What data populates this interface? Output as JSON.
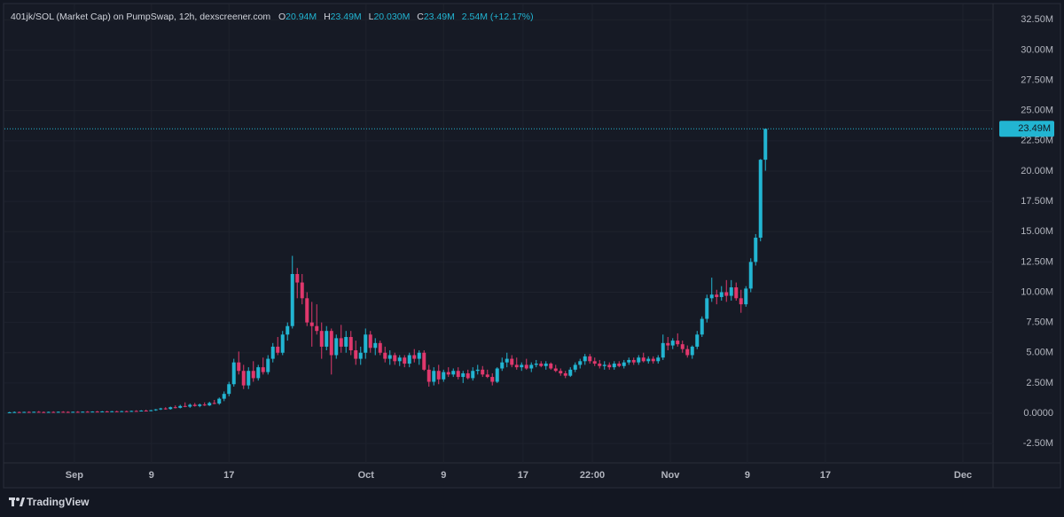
{
  "header": {
    "symbol": "401jk/SOL (Market Cap) on PumpSwap, 12h, dexscreener.com",
    "ohlc": [
      {
        "key": "O",
        "value": "20.94M"
      },
      {
        "key": "H",
        "value": "23.49M"
      },
      {
        "key": "L",
        "value": "20.030M"
      },
      {
        "key": "C",
        "value": "23.49M"
      }
    ],
    "change": "2.54M (+12.17%)"
  },
  "chart_data": {
    "type": "candlestick",
    "up_color": "#22b5d2",
    "down_color": "#e0386d",
    "grid": true,
    "ylim": [
      -4.1,
      33.4
    ],
    "yticks": [
      {
        "value": -2.5,
        "label": "-2.50M"
      },
      {
        "value": 0,
        "label": "0.0000"
      },
      {
        "value": 2.5,
        "label": "2.50M"
      },
      {
        "value": 5,
        "label": "5.00M"
      },
      {
        "value": 7.5,
        "label": "7.50M"
      },
      {
        "value": 10,
        "label": "10.00M"
      },
      {
        "value": 12.5,
        "label": "12.50M"
      },
      {
        "value": 15,
        "label": "15.00M"
      },
      {
        "value": 17.5,
        "label": "17.50M"
      },
      {
        "value": 20,
        "label": "20.00M"
      },
      {
        "value": 22.5,
        "label": "22.50M"
      },
      {
        "value": 25,
        "label": "25.00M"
      },
      {
        "value": 27.5,
        "label": "27.50M"
      },
      {
        "value": 30,
        "label": "30.00M"
      },
      {
        "value": 32.5,
        "label": "32.50M"
      }
    ],
    "xlim": [
      0,
      202
    ],
    "xticks": [
      {
        "value": 13.8,
        "label": "Sep"
      },
      {
        "value": 29.6,
        "label": "9"
      },
      {
        "value": 45.5,
        "label": "17"
      },
      {
        "value": 73.6,
        "label": "Oct"
      },
      {
        "value": 89.5,
        "label": "9"
      },
      {
        "value": 105.8,
        "label": "17"
      },
      {
        "value": 120,
        "label": "22:00"
      },
      {
        "value": 136,
        "label": "Nov"
      },
      {
        "value": 151.8,
        "label": "9"
      },
      {
        "value": 167.8,
        "label": "17"
      },
      {
        "value": 196,
        "label": "Dec"
      }
    ],
    "last_price": {
      "value": 23.49,
      "label": "23.49M"
    },
    "candles": [
      [
        0.05,
        0.12,
        0.03,
        0.08
      ],
      [
        0.08,
        0.15,
        0.05,
        0.1
      ],
      [
        0.1,
        0.14,
        0.06,
        0.09
      ],
      [
        0.09,
        0.13,
        0.05,
        0.11
      ],
      [
        0.11,
        0.16,
        0.07,
        0.1
      ],
      [
        0.1,
        0.14,
        0.07,
        0.12
      ],
      [
        0.12,
        0.18,
        0.08,
        0.1
      ],
      [
        0.1,
        0.15,
        0.07,
        0.09
      ],
      [
        0.09,
        0.14,
        0.06,
        0.11
      ],
      [
        0.11,
        0.16,
        0.08,
        0.1
      ],
      [
        0.1,
        0.15,
        0.07,
        0.12
      ],
      [
        0.12,
        0.17,
        0.09,
        0.11
      ],
      [
        0.11,
        0.16,
        0.08,
        0.1
      ],
      [
        0.1,
        0.14,
        0.07,
        0.12
      ],
      [
        0.12,
        0.17,
        0.09,
        0.11
      ],
      [
        0.11,
        0.15,
        0.08,
        0.13
      ],
      [
        0.13,
        0.18,
        0.1,
        0.12
      ],
      [
        0.12,
        0.16,
        0.09,
        0.14
      ],
      [
        0.14,
        0.19,
        0.11,
        0.13
      ],
      [
        0.13,
        0.18,
        0.1,
        0.15
      ],
      [
        0.15,
        0.2,
        0.12,
        0.14
      ],
      [
        0.14,
        0.19,
        0.11,
        0.16
      ],
      [
        0.16,
        0.21,
        0.13,
        0.15
      ],
      [
        0.15,
        0.2,
        0.12,
        0.17
      ],
      [
        0.17,
        0.22,
        0.14,
        0.16
      ],
      [
        0.16,
        0.22,
        0.13,
        0.19
      ],
      [
        0.19,
        0.25,
        0.15,
        0.18
      ],
      [
        0.18,
        0.26,
        0.15,
        0.22
      ],
      [
        0.22,
        0.3,
        0.18,
        0.2
      ],
      [
        0.2,
        0.28,
        0.17,
        0.25
      ],
      [
        0.25,
        0.35,
        0.2,
        0.32
      ],
      [
        0.32,
        0.45,
        0.27,
        0.4
      ],
      [
        0.4,
        0.5,
        0.3,
        0.35
      ],
      [
        0.35,
        0.55,
        0.3,
        0.5
      ],
      [
        0.5,
        0.65,
        0.4,
        0.45
      ],
      [
        0.45,
        0.7,
        0.4,
        0.6
      ],
      [
        0.6,
        0.9,
        0.5,
        0.55
      ],
      [
        0.55,
        0.8,
        0.45,
        0.7
      ],
      [
        0.7,
        0.85,
        0.55,
        0.6
      ],
      [
        0.6,
        0.8,
        0.5,
        0.72
      ],
      [
        0.72,
        0.9,
        0.6,
        0.65
      ],
      [
        0.65,
        0.95,
        0.6,
        0.85
      ],
      [
        0.85,
        1.1,
        0.75,
        0.8
      ],
      [
        0.8,
        1.3,
        0.7,
        1.2
      ],
      [
        1.2,
        1.8,
        1.0,
        1.6
      ],
      [
        1.6,
        2.6,
        1.4,
        2.4
      ],
      [
        2.4,
        4.5,
        2.2,
        4.2
      ],
      [
        4.2,
        5.1,
        3.2,
        3.5
      ],
      [
        3.5,
        4.0,
        2.0,
        2.3
      ],
      [
        2.3,
        3.8,
        2.0,
        3.5
      ],
      [
        3.5,
        4.3,
        2.6,
        2.9
      ],
      [
        2.9,
        4.0,
        2.7,
        3.8
      ],
      [
        3.8,
        4.6,
        3.2,
        3.4
      ],
      [
        3.4,
        4.8,
        3.2,
        4.5
      ],
      [
        4.5,
        5.8,
        4.2,
        5.5
      ],
      [
        5.5,
        6.3,
        4.8,
        5.0
      ],
      [
        5.0,
        6.8,
        4.8,
        6.5
      ],
      [
        6.5,
        7.5,
        6.0,
        7.2
      ],
      [
        7.2,
        13.0,
        7.0,
        11.5
      ],
      [
        11.5,
        12.0,
        9.5,
        10.8
      ],
      [
        10.8,
        11.5,
        9.0,
        9.5
      ],
      [
        9.5,
        10.0,
        7.2,
        7.5
      ],
      [
        7.5,
        9.2,
        5.5,
        7.2
      ],
      [
        7.2,
        9.0,
        6.5,
        6.8
      ],
      [
        6.8,
        7.5,
        4.5,
        5.5
      ],
      [
        5.5,
        7.2,
        5.2,
        6.8
      ],
      [
        6.8,
        7.0,
        3.2,
        4.8
      ],
      [
        4.8,
        6.5,
        4.5,
        6.2
      ],
      [
        6.2,
        7.3,
        5.0,
        5.5
      ],
      [
        5.5,
        6.8,
        5.0,
        6.3
      ],
      [
        6.3,
        6.8,
        4.8,
        5.2
      ],
      [
        5.2,
        6.0,
        4.0,
        4.5
      ],
      [
        4.5,
        5.5,
        4.0,
        5.0
      ],
      [
        5.0,
        7.0,
        4.5,
        6.5
      ],
      [
        6.5,
        6.8,
        5.0,
        5.4
      ],
      [
        5.4,
        6.2,
        4.8,
        5.8
      ],
      [
        5.8,
        6.0,
        4.8,
        5.0
      ],
      [
        5.0,
        5.5,
        4.2,
        4.5
      ],
      [
        4.5,
        5.2,
        4.0,
        4.8
      ],
      [
        4.8,
        5.0,
        4.0,
        4.3
      ],
      [
        4.3,
        4.8,
        3.9,
        4.6
      ],
      [
        4.6,
        4.8,
        3.8,
        4.1
      ],
      [
        4.1,
        5.0,
        3.8,
        4.8
      ],
      [
        4.8,
        5.3,
        4.2,
        4.5
      ],
      [
        4.5,
        5.2,
        4.0,
        5.0
      ],
      [
        5.0,
        5.2,
        3.5,
        3.6
      ],
      [
        3.6,
        4.0,
        2.2,
        2.6
      ],
      [
        2.6,
        3.8,
        2.3,
        3.5
      ],
      [
        3.5,
        4.0,
        2.4,
        2.8
      ],
      [
        2.8,
        3.6,
        2.6,
        3.4
      ],
      [
        3.4,
        3.8,
        3.0,
        3.2
      ],
      [
        3.2,
        3.7,
        3.0,
        3.5
      ],
      [
        3.5,
        3.8,
        2.8,
        3.0
      ],
      [
        3.0,
        3.5,
        2.5,
        3.3
      ],
      [
        3.3,
        3.6,
        2.8,
        2.9
      ],
      [
        2.9,
        3.8,
        2.7,
        3.5
      ],
      [
        3.5,
        4.0,
        3.2,
        3.6
      ],
      [
        3.6,
        3.9,
        3.0,
        3.2
      ],
      [
        3.2,
        3.6,
        2.9,
        3.0
      ],
      [
        3.0,
        3.3,
        2.3,
        2.6
      ],
      [
        2.6,
        3.8,
        2.5,
        3.7
      ],
      [
        3.7,
        4.6,
        3.5,
        4.2
      ],
      [
        4.2,
        5.0,
        3.8,
        4.5
      ],
      [
        4.5,
        4.8,
        3.8,
        4.0
      ],
      [
        4.0,
        4.6,
        3.6,
        3.8
      ],
      [
        3.8,
        4.2,
        3.5,
        4.0
      ],
      [
        4.0,
        4.5,
        3.6,
        3.7
      ],
      [
        3.7,
        4.2,
        3.4,
        4.0
      ],
      [
        4.0,
        4.4,
        3.8,
        4.1
      ],
      [
        4.1,
        4.3,
        3.8,
        3.9
      ],
      [
        3.9,
        4.3,
        3.6,
        4.1
      ],
      [
        4.1,
        4.2,
        3.6,
        3.7
      ],
      [
        3.7,
        4.0,
        3.4,
        3.5
      ],
      [
        3.5,
        3.7,
        3.1,
        3.3
      ],
      [
        3.3,
        3.5,
        2.9,
        3.1
      ],
      [
        3.1,
        3.8,
        3.0,
        3.6
      ],
      [
        3.6,
        4.2,
        3.4,
        4.0
      ],
      [
        4.0,
        4.5,
        3.7,
        4.3
      ],
      [
        4.3,
        4.9,
        4.0,
        4.7
      ],
      [
        4.7,
        4.9,
        4.1,
        4.3
      ],
      [
        4.3,
        4.6,
        3.9,
        4.1
      ],
      [
        4.1,
        4.4,
        3.7,
        3.9
      ],
      [
        3.9,
        4.3,
        3.6,
        4.0
      ],
      [
        4.0,
        4.2,
        3.6,
        3.8
      ],
      [
        3.8,
        4.3,
        3.6,
        4.1
      ],
      [
        4.1,
        4.3,
        3.8,
        3.9
      ],
      [
        3.9,
        4.4,
        3.7,
        4.2
      ],
      [
        4.2,
        4.6,
        4.0,
        4.4
      ],
      [
        4.4,
        4.6,
        4.0,
        4.2
      ],
      [
        4.2,
        4.8,
        4.0,
        4.6
      ],
      [
        4.6,
        5.0,
        4.2,
        4.3
      ],
      [
        4.3,
        4.7,
        4.1,
        4.5
      ],
      [
        4.5,
        4.7,
        4.1,
        4.3
      ],
      [
        4.3,
        4.8,
        4.1,
        4.6
      ],
      [
        4.6,
        6.5,
        4.4,
        5.8
      ],
      [
        5.8,
        6.3,
        5.2,
        5.6
      ],
      [
        5.6,
        6.2,
        5.3,
        6.0
      ],
      [
        6.0,
        6.6,
        5.5,
        5.7
      ],
      [
        5.7,
        6.0,
        5.0,
        5.3
      ],
      [
        5.3,
        5.6,
        4.6,
        4.8
      ],
      [
        4.8,
        5.6,
        4.5,
        5.5
      ],
      [
        5.5,
        6.8,
        5.3,
        6.5
      ],
      [
        6.5,
        8.0,
        6.3,
        7.8
      ],
      [
        7.8,
        9.8,
        7.5,
        9.5
      ],
      [
        9.5,
        11.2,
        9.2,
        9.8
      ],
      [
        9.8,
        10.2,
        9.0,
        9.6
      ],
      [
        9.6,
        10.5,
        9.3,
        10.0
      ],
      [
        10.0,
        11.0,
        9.2,
        9.7
      ],
      [
        9.7,
        11.0,
        9.3,
        10.4
      ],
      [
        10.4,
        10.8,
        9.3,
        9.5
      ],
      [
        9.5,
        10.2,
        8.3,
        9.0
      ],
      [
        9.0,
        10.5,
        8.8,
        10.3
      ],
      [
        10.3,
        12.8,
        10.0,
        12.5
      ],
      [
        12.5,
        14.8,
        12.2,
        14.5
      ],
      [
        14.5,
        21.0,
        14.2,
        20.94
      ],
      [
        20.94,
        23.49,
        20.03,
        23.49
      ]
    ]
  },
  "footer": {
    "brand": "TradingView"
  }
}
